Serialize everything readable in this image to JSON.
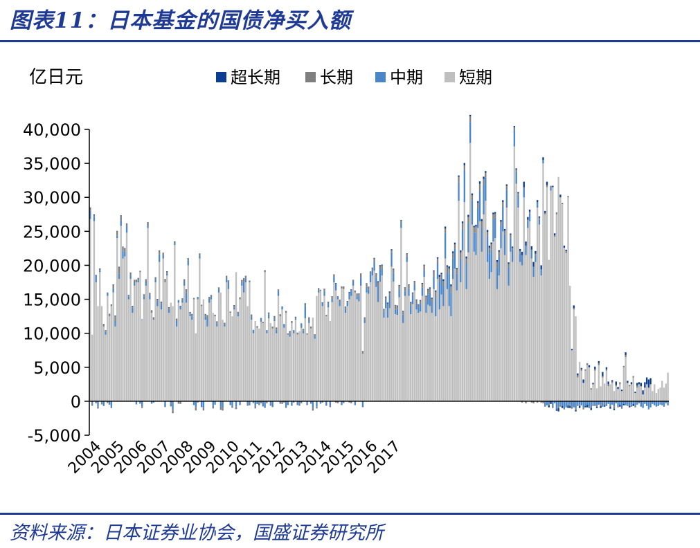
{
  "title": "图表11：日本基金的国债净买入额",
  "source": "资料来源：日本证券业协会，国盛证券研究所",
  "chart_data": {
    "type": "bar",
    "stacked": true,
    "ylabel": "亿日元",
    "ylim": [
      -5000,
      40000
    ],
    "yticks": [
      40000,
      35000,
      30000,
      25000,
      20000,
      15000,
      10000,
      5000,
      0,
      -5000
    ],
    "ytick_labels": [
      "40,000",
      "35,000",
      "30,000",
      "25,000",
      "20,000",
      "15,000",
      "10,000",
      "5,000",
      "0",
      "-5,000"
    ],
    "x_tick_labels": [
      "2004",
      "2005",
      "2006",
      "2007",
      "2008",
      "2009",
      "2010",
      "2011",
      "2012",
      "2013",
      "2014",
      "2015",
      "2016",
      "2017"
    ],
    "x_start_year": 2004,
    "months_per_tick": 12,
    "grid": false,
    "legend_position": "top",
    "legend": [
      "超长期",
      "长期",
      "中期",
      "短期"
    ],
    "colors": {
      "超长期": "#0B3D91",
      "长期": "#7F7F7F",
      "中期": "#4A86C8",
      "短期": "#BFBFBF"
    },
    "series": [
      {
        "name": "短期",
        "values": [
          26800,
          9800,
          26500,
          17500,
          14000,
          19000,
          14000,
          11000,
          9800,
          15500,
          12500,
          14000,
          16000,
          11000,
          24000,
          18000,
          25800,
          21000,
          21300,
          24800,
          15000,
          18000,
          13000,
          17000,
          17500,
          17500,
          19000,
          12000,
          15000,
          17000,
          25500,
          15000,
          13000,
          12000,
          17500,
          14000,
          20500,
          13500,
          21000,
          17500,
          18500,
          13000,
          14500,
          14000,
          23000,
          11000,
          14500,
          13500,
          14500,
          17000,
          14500,
          20000,
          12500,
          12000,
          15000,
          10000,
          15000,
          21000,
          14000,
          15000,
          12000,
          11000,
          14500,
          15000,
          13000,
          12500,
          11000,
          16000,
          16000,
          12000,
          11000,
          17500,
          16500,
          13000,
          12500,
          13500,
          19000,
          12500,
          15000,
          17000,
          16000,
          17500,
          14000,
          17500,
          12000,
          10000,
          11800,
          10800,
          10700,
          11700,
          11500,
          19000,
          10000,
          12200,
          11500,
          10700,
          11800,
          10000,
          15500,
          12500,
          13500,
          10800,
          13000,
          9800,
          9500,
          11500,
          10000,
          12000,
          9800,
          10300,
          10800,
          10000,
          12200,
          9800,
          11500,
          10700,
          12300,
          9200,
          15500,
          16000,
          16200,
          14000,
          15500,
          12500,
          13800,
          11800,
          14600,
          17500,
          16300,
          15000,
          14000,
          16600,
          16500,
          13000,
          14000,
          15000,
          15500,
          17000,
          16000,
          15000,
          14700,
          17000,
          7000,
          11500,
          16000,
          15800,
          17500,
          18500,
          19200,
          16800,
          14600,
          17600,
          18500,
          12300,
          13700,
          12300,
          13700,
          19800,
          17600,
          12800,
          12700,
          15300,
          25500,
          11500,
          15500,
          20500,
          15500,
          12800,
          14300,
          16300,
          13500,
          13000,
          13200,
          15500,
          18300,
          13000,
          14200,
          14000,
          13000,
          16500,
          12500,
          18000,
          13500,
          15700,
          14000,
          21000,
          16500,
          14000,
          12500,
          18000,
          19500,
          16300,
          29500,
          17500,
          22200,
          29300,
          16500,
          21900,
          38000,
          26000,
          22000,
          21500,
          25500,
          26500,
          22000,
          27500,
          29500,
          20500,
          18000,
          19000,
          23500,
          24000,
          16500,
          18500,
          22500,
          25000,
          21500,
          28500,
          17000,
          22000,
          20500,
          37500,
          32000,
          28500,
          20500,
          20000,
          30000,
          21500,
          25500,
          26500,
          21000,
          18300,
          20500,
          28500,
          26000,
          18500,
          35000,
          27500,
          31500,
          20800,
          31000,
          31500,
          24200,
          27500,
          33000,
          30000,
          29000,
          22600,
          21800,
          30000,
          17000,
          7500,
          13500,
          12500,
          3500,
          5800,
          4500,
          2700,
          4500,
          5300,
          5000,
          1700,
          2500,
          4500,
          1900,
          5300,
          2200,
          3500,
          2600,
          4500,
          2200,
          2500,
          2700,
          1500,
          2200,
          1800,
          2500,
          1500,
          5000,
          6500,
          2700,
          2200,
          2500,
          3500,
          1200,
          2000,
          2500,
          2200,
          1000,
          2000,
          2500,
          2000,
          2500,
          1500,
          2500,
          1200,
          1800,
          2000,
          3000,
          2000,
          2600,
          4200
        ]
      },
      {
        "name": "中期",
        "values": [
          1200,
          -400,
          600,
          1000,
          -800,
          300,
          -200,
          -700,
          400,
          500,
          -500,
          -1000,
          600,
          800,
          400,
          800,
          800,
          1100,
          700,
          900,
          400,
          600,
          800,
          500,
          -400,
          300,
          -300,
          -800,
          400,
          500,
          300,
          600,
          -300,
          -200,
          500,
          700,
          1100,
          700,
          500,
          -800,
          300,
          600,
          -400,
          -1200,
          300,
          800,
          400,
          500,
          400,
          600,
          1500,
          700,
          400,
          500,
          -500,
          -900,
          300,
          400,
          -800,
          -1000,
          500,
          1200,
          600,
          300,
          -700,
          -500,
          400,
          500,
          -800,
          -1000,
          300,
          500,
          900,
          -500,
          -700,
          300,
          -800,
          400,
          -500,
          400,
          1500,
          600,
          -300,
          -600,
          400,
          500,
          -700,
          -400,
          -300,
          500,
          -700,
          -900,
          400,
          600,
          -400,
          -800,
          300,
          500,
          700,
          -300,
          400,
          500,
          -900,
          -500,
          400,
          -600,
          400,
          200,
          -500,
          -400,
          600,
          400,
          1800,
          -500,
          400,
          -300,
          -1000,
          400,
          -800,
          300,
          -300,
          500,
          700,
          -600,
          500,
          -600,
          400,
          800,
          1000,
          400,
          700,
          -500,
          -200,
          600,
          500,
          1000,
          900,
          600,
          -500,
          400,
          800,
          1200,
          -800,
          500,
          800,
          600,
          1200,
          700,
          1300,
          1500,
          2300,
          1800,
          1100,
          900,
          1200,
          1600,
          1900,
          2100,
          1300,
          700,
          900,
          1200,
          800,
          1300,
          700,
          800,
          1100,
          1300,
          1300,
          900,
          900,
          800,
          1100,
          1200,
          1000,
          1600,
          1500,
          2000,
          1600,
          1900,
          2800,
          2300,
          4200,
          2500,
          3000,
          3800,
          2500,
          4800,
          3500,
          3000,
          2900,
          2500,
          2700,
          3500,
          3200,
          4700,
          3900,
          4300,
          3100,
          3600,
          2800,
          3300,
          2900,
          4500,
          3600,
          4400,
          3400,
          3800,
          3700,
          3300,
          3300,
          3000,
          3200,
          2800,
          3300,
          3600,
          3100,
          2600,
          2800,
          2000,
          1800,
          2400,
          1800,
          1900,
          1300,
          1500,
          1300,
          1400,
          1000,
          1100,
          1300,
          1500,
          1000,
          800,
          700,
          900,
          500,
          -800,
          -600,
          -400,
          500,
          -700,
          -300,
          -1200,
          -800,
          -500,
          -700,
          -1000,
          -900,
          -600,
          -500,
          -800,
          -900,
          -1100,
          -700,
          -500,
          -600,
          -900,
          -700,
          -500,
          -800,
          -1000,
          -400,
          -700,
          -600,
          -500,
          -500,
          -800,
          -300,
          -700,
          -400,
          -600,
          -500,
          -800,
          -300,
          -700,
          -500,
          -900,
          -400,
          -600,
          -500,
          -700,
          -500,
          -400,
          -700,
          -500,
          -300,
          -800,
          -1000,
          -400,
          -700,
          -1200,
          -900,
          -400,
          -600,
          -800,
          -700,
          -500,
          -600,
          -800,
          -300,
          -600,
          -1000,
          -700,
          -500,
          -900,
          -600,
          -400
        ]
      },
      {
        "name": "长期",
        "values": [
          400,
          -200,
          300,
          -300,
          -200,
          200,
          -200,
          300,
          200,
          -200,
          300,
          200,
          500,
          700,
          600,
          900,
          700,
          600,
          500,
          400,
          200,
          300,
          200,
          300,
          400,
          300,
          200,
          -200,
          300,
          400,
          500,
          300,
          400,
          300,
          200,
          300,
          500,
          400,
          300,
          500,
          300,
          200,
          -300,
          -500,
          200,
          300,
          -300,
          -400,
          200,
          300,
          400,
          300,
          200,
          300,
          200,
          -400,
          -200,
          300,
          200,
          -300,
          300,
          400,
          200,
          300,
          -300,
          200,
          300,
          200,
          -400,
          -300,
          200,
          400,
          300,
          200,
          -200,
          300,
          -300,
          200,
          300,
          400,
          500,
          300,
          -300,
          200,
          300,
          -200,
          -300,
          200,
          -200,
          -300,
          200,
          300,
          -300,
          200,
          -200,
          300,
          400,
          300,
          200,
          300,
          -400,
          -200,
          300,
          200,
          400,
          300,
          -200,
          200,
          300,
          -200,
          -300,
          200,
          300,
          200,
          400,
          300,
          -300,
          200,
          -200,
          300,
          200,
          -200,
          300,
          200,
          300,
          -200,
          400,
          300,
          -200,
          -300,
          200,
          300,
          400,
          300,
          200,
          -200,
          -300,
          200,
          300,
          400,
          300,
          500,
          400,
          300,
          500,
          400,
          300,
          400,
          500,
          400,
          600,
          500,
          400,
          300,
          400,
          500,
          400,
          300,
          500,
          600,
          400,
          500,
          300,
          400,
          500,
          400,
          500,
          400,
          300,
          400,
          500,
          400,
          500,
          600,
          700,
          800,
          700,
          600,
          500,
          700,
          800,
          700,
          600,
          500,
          700,
          600,
          800,
          700,
          900,
          800,
          700,
          600,
          800,
          900,
          800,
          700,
          600,
          900,
          800,
          700,
          800,
          900,
          800,
          1000,
          900,
          800,
          700,
          600,
          900,
          800,
          700,
          600,
          800,
          700,
          600,
          700,
          500,
          600,
          400,
          500,
          300,
          400,
          300,
          200,
          300,
          -200,
          200,
          -300,
          200,
          300,
          -200,
          -300,
          200,
          -200,
          300,
          -200,
          -300,
          200,
          300,
          -200,
          200,
          -300,
          200,
          300,
          -200,
          -300,
          200,
          -200,
          300,
          200,
          -200,
          -300,
          200,
          -200,
          300,
          -200,
          200,
          -300,
          200,
          300,
          -200,
          200,
          -300,
          200,
          -200,
          300,
          -200,
          200,
          -300,
          200,
          300,
          -200,
          200,
          -300,
          200,
          -200,
          300,
          -200,
          200,
          300,
          -200,
          200,
          -300,
          200,
          -200,
          300
        ]
      },
      {
        "name": "超长期",
        "values": [
          100,
          -50,
          100,
          80,
          -60,
          50,
          -40,
          60,
          50,
          -50,
          60,
          40,
          80,
          100,
          60,
          80,
          60,
          50,
          40,
          60,
          30,
          40,
          30,
          50,
          -40,
          30,
          -30,
          40,
          30,
          50,
          40,
          30,
          -30,
          40,
          50,
          60,
          80,
          60,
          50,
          -40,
          30,
          40,
          -50,
          -60,
          30,
          40,
          -40,
          50,
          30,
          40,
          60,
          50,
          30,
          40,
          -30,
          -50,
          30,
          40,
          -40,
          -50,
          30,
          60,
          40,
          30,
          -40,
          30,
          40,
          30,
          -50,
          -40,
          30,
          50,
          60,
          -30,
          -40,
          30,
          -50,
          40,
          -30,
          40,
          80,
          50,
          -30,
          40,
          50,
          -30,
          -40,
          30,
          -30,
          40,
          -50,
          -60,
          40,
          50,
          -40,
          -50,
          30,
          40,
          50,
          -30,
          40,
          50,
          -60,
          -40,
          30,
          -40,
          40,
          30,
          -40,
          -30,
          50,
          40,
          100,
          -50,
          40,
          -30,
          -60,
          40,
          -50,
          30,
          -30,
          40,
          50,
          -40,
          40,
          -50,
          30,
          60,
          80,
          40,
          50,
          -40,
          -30,
          50,
          40,
          80,
          70,
          50,
          -40,
          40,
          60,
          80,
          -60,
          40,
          60,
          50,
          80,
          60,
          90,
          100,
          150,
          120,
          100,
          80,
          100,
          120,
          150,
          160,
          100,
          60,
          80,
          100,
          70,
          100,
          60,
          70,
          90,
          100,
          100,
          80,
          80,
          70,
          90,
          100,
          90,
          120,
          110,
          150,
          130,
          150,
          200,
          180,
          300,
          200,
          250,
          300,
          200,
          350,
          300,
          250,
          240,
          200,
          220,
          300,
          260,
          350,
          300,
          330,
          250,
          280,
          220,
          260,
          240,
          350,
          300,
          340,
          270,
          300,
          290,
          260,
          260,
          240,
          260,
          230,
          260,
          280,
          250,
          210,
          230,
          180,
          160,
          200,
          160,
          170,
          300,
          500,
          800,
          600,
          400,
          300,
          500,
          700,
          400,
          300,
          200,
          600,
          400,
          300,
          500,
          -300,
          -400,
          200,
          300,
          -200,
          -500,
          400,
          -300,
          300,
          200,
          -400,
          -300,
          200,
          400,
          -200,
          300,
          -300,
          200,
          500,
          -200,
          -400,
          300,
          -300,
          200,
          400,
          -200,
          300,
          -300,
          600,
          -200,
          300,
          400,
          -300,
          200,
          -200,
          500,
          300,
          -300,
          200,
          -200,
          400,
          300,
          -200,
          300,
          -300,
          200,
          400,
          300,
          500,
          600,
          800,
          1000,
          1200,
          900
        ]
      }
    ]
  }
}
